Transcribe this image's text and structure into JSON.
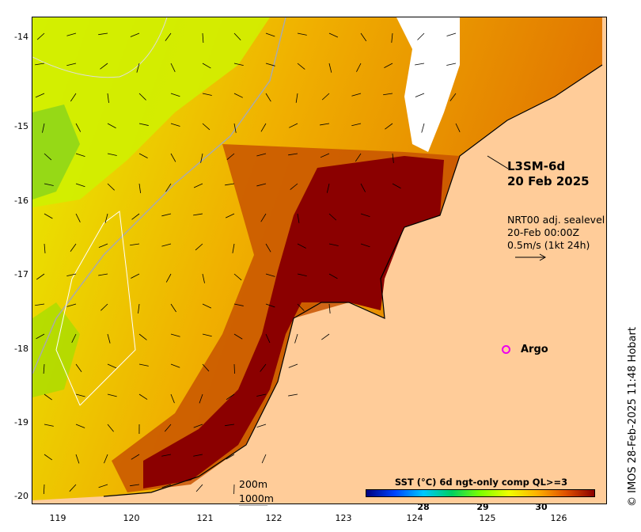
{
  "map": {
    "product": "L3SM-6d",
    "date": "20 Feb 2025",
    "sealevel_lines": [
      "NRT00 adj. sealevel",
      "20-Feb 00:00Z",
      "0.5m/s (1kt 24h)"
    ],
    "argo_label": "Argo",
    "contour_labels": [
      "200m",
      "1000m"
    ],
    "y_ticks": [
      "-14",
      "-15",
      "-16",
      "-17",
      "-18",
      "-19",
      "-20"
    ],
    "x_ticks": [
      "119",
      "120",
      "121",
      "122",
      "123",
      "124",
      "125",
      "126"
    ],
    "colorbar": {
      "title": "SST (°C) 6d ngt-only comp QL>=3",
      "ticks": [
        "28",
        "29",
        "30"
      ],
      "colors": [
        "#00007f",
        "#0044ff",
        "#00c8ff",
        "#00d060",
        "#7cff00",
        "#f0ff00",
        "#ffb000",
        "#e05000",
        "#8b0000"
      ]
    },
    "credit": "© IMOS 28-Feb-2025 11:48 Hobart",
    "colors": {
      "land": "#ffcc99",
      "hot": "#8b0000",
      "warm": "#d87a00",
      "cool": "#c8f000",
      "contour": "#aaaaaa",
      "argo": "#ee00ee"
    }
  }
}
